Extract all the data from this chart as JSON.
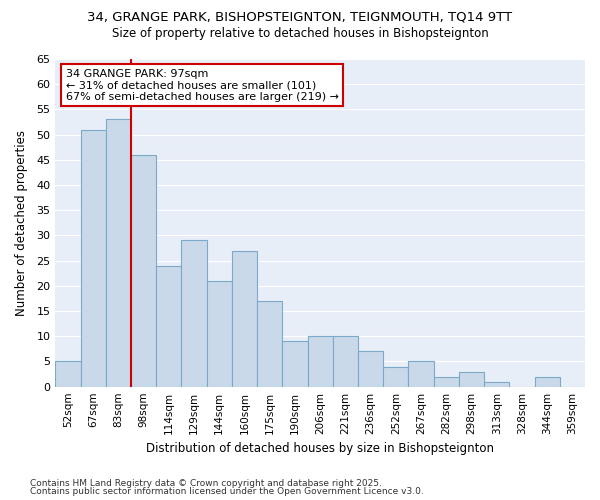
{
  "title": "34, GRANGE PARK, BISHOPSTEIGNTON, TEIGNMOUTH, TQ14 9TT",
  "subtitle": "Size of property relative to detached houses in Bishopsteignton",
  "xlabel": "Distribution of detached houses by size in Bishopsteignton",
  "ylabel": "Number of detached properties",
  "footnote1": "Contains HM Land Registry data © Crown copyright and database right 2025.",
  "footnote2": "Contains public sector information licensed under the Open Government Licence v3.0.",
  "categories": [
    "52sqm",
    "67sqm",
    "83sqm",
    "98sqm",
    "114sqm",
    "129sqm",
    "144sqm",
    "160sqm",
    "175sqm",
    "190sqm",
    "206sqm",
    "221sqm",
    "236sqm",
    "252sqm",
    "267sqm",
    "282sqm",
    "298sqm",
    "313sqm",
    "328sqm",
    "344sqm",
    "359sqm"
  ],
  "values": [
    5,
    51,
    53,
    46,
    24,
    29,
    21,
    27,
    17,
    9,
    10,
    10,
    7,
    4,
    5,
    2,
    3,
    1,
    0,
    2,
    0
  ],
  "bar_color": "#c9d9ea",
  "bar_edge_color": "#7aaac8",
  "redline_x": 3,
  "redline_color": "#cc0000",
  "annotation_text": "34 GRANGE PARK: 97sqm\n← 31% of detached houses are smaller (101)\n67% of semi-detached houses are larger (219) →",
  "annotation_box_color": "#ffffff",
  "annotation_box_edge": "#cc0000",
  "bg_color": "#ffffff",
  "plot_bg_color": "#e8eef8",
  "grid_color": "#ffffff",
  "ylim": [
    0,
    65
  ],
  "yticks": [
    0,
    5,
    10,
    15,
    20,
    25,
    30,
    35,
    40,
    45,
    50,
    55,
    60,
    65
  ]
}
